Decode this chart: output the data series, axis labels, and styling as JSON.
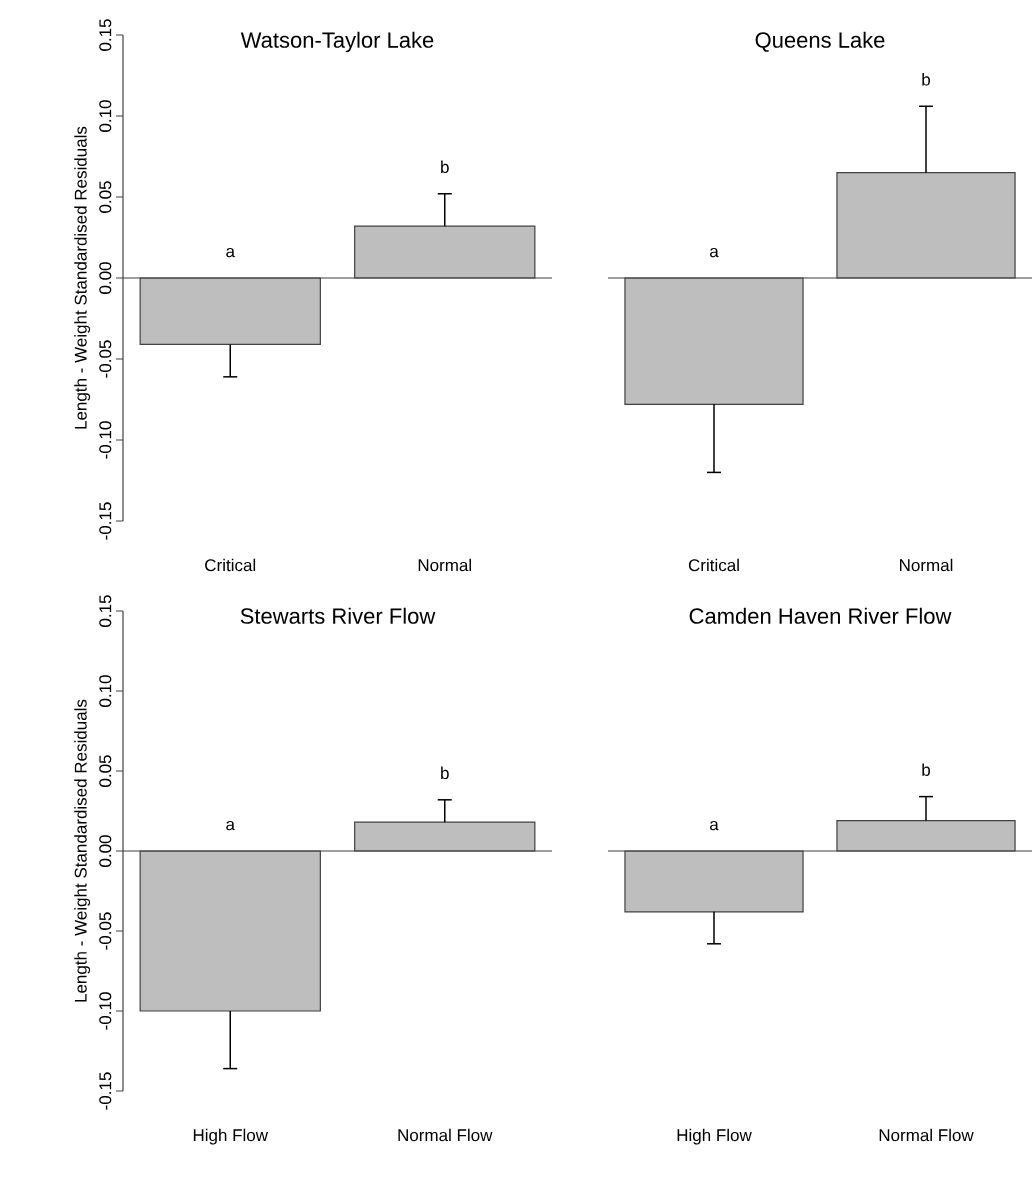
{
  "chart_data": [
    {
      "type": "bar",
      "title": "Watson-Taylor Lake",
      "ylabel": "Length - Weight Standardised Residuals",
      "categories": [
        "Critical",
        "Normal"
      ],
      "values": [
        -0.041,
        0.032
      ],
      "color": "#bebebe",
      "errors": [
        [
          -0.061,
          -0.041
        ],
        [
          0.032,
          0.052
        ]
      ],
      "ylim": [
        -0.15,
        0.15
      ],
      "yticks": [
        -0.15,
        {
          "value": -0.1,
          "label": "-0.10"
        },
        -0.05,
        {
          "value": 0,
          "label": "0.00"
        },
        0.05,
        {
          "value": 0.1,
          "label": "0.10"
        },
        0.15
      ],
      "ref_lines": [
        {
          "axis": "y",
          "value": 0
        }
      ],
      "annotations": [
        "a",
        "b"
      ]
    },
    {
      "type": "bar",
      "title": "Queens Lake",
      "categories": [
        "Critical",
        "Normal"
      ],
      "values": [
        -0.078,
        0.065
      ],
      "color": "#bebebe",
      "errors": [
        [
          -0.12,
          -0.078
        ],
        [
          0.065,
          0.106
        ]
      ],
      "ylim": [
        -0.15,
        0.15
      ],
      "tick_labels": "x",
      "ref_lines": [
        {
          "axis": "y",
          "value": 0
        }
      ],
      "annotations": [
        "a",
        "b"
      ]
    },
    {
      "type": "bar",
      "title": "Stewarts River Flow",
      "ylabel": "Length - Weight Standardised Residuals",
      "categories": [
        "High Flow",
        "Normal Flow"
      ],
      "values": [
        -0.1,
        0.018
      ],
      "color": "#bebebe",
      "errors": [
        [
          -0.136,
          -0.1
        ],
        [
          0.018,
          0.032
        ]
      ],
      "ylim": [
        -0.15,
        0.15
      ],
      "yticks": [
        -0.15,
        {
          "value": -0.1,
          "label": "-0.10"
        },
        -0.05,
        {
          "value": 0,
          "label": "0.00"
        },
        0.05,
        {
          "value": 0.1,
          "label": "0.10"
        },
        0.15
      ],
      "ref_lines": [
        {
          "axis": "y",
          "value": 0
        }
      ],
      "annotations": [
        "a",
        "b"
      ]
    },
    {
      "type": "bar",
      "title": "Camden Haven River Flow",
      "categories": [
        "High Flow",
        "Normal Flow"
      ],
      "values": [
        -0.038,
        0.019
      ],
      "color": "#bebebe",
      "errors": [
        [
          -0.058,
          -0.038
        ],
        [
          0.019,
          0.034
        ]
      ],
      "ylim": [
        -0.15,
        0.15
      ],
      "tick_labels": "x",
      "ref_lines": [
        {
          "axis": "y",
          "value": 0
        }
      ],
      "annotations": [
        "a",
        "b"
      ]
    }
  ]
}
